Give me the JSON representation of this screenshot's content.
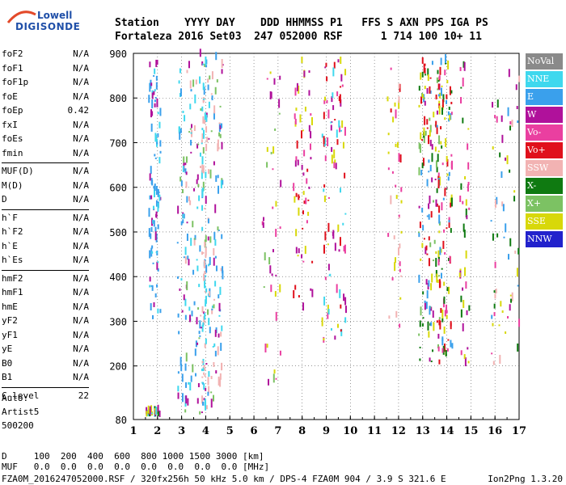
{
  "logo": {
    "line1": "Lowell",
    "line2": "DIGISONDE"
  },
  "header": {
    "line1": "Station    YYYY DAY    DDD HHMMSS P1   FFS S AXN PPS IGA PS",
    "line2": "Fortaleza 2016 Set03  247 052000 RSF      1 714 100 10+ 11"
  },
  "params": {
    "group1": [
      {
        "name": "foF2",
        "value": "N/A"
      },
      {
        "name": "foF1",
        "value": "N/A"
      },
      {
        "name": "foF1p",
        "value": "N/A"
      },
      {
        "name": "foE",
        "value": "N/A"
      },
      {
        "name": "foEp",
        "value": "0.42"
      },
      {
        "name": "fxI",
        "value": "N/A"
      },
      {
        "name": "foEs",
        "value": "N/A"
      },
      {
        "name": "fmin",
        "value": "N/A"
      }
    ],
    "group2": [
      {
        "name": "MUF(D)",
        "value": "N/A"
      },
      {
        "name": "M(D)",
        "value": "N/A"
      },
      {
        "name": "D",
        "value": "N/A"
      }
    ],
    "group3": [
      {
        "name": "h`F",
        "value": "N/A"
      },
      {
        "name": "h`F2",
        "value": "N/A"
      },
      {
        "name": "h`E",
        "value": "N/A"
      },
      {
        "name": "h`Es",
        "value": "N/A"
      }
    ],
    "group4": [
      {
        "name": "hmF2",
        "value": "N/A"
      },
      {
        "name": "hmF1",
        "value": "N/A"
      },
      {
        "name": "hmE",
        "value": "N/A"
      },
      {
        "name": "yF2",
        "value": "N/A"
      },
      {
        "name": "yF1",
        "value": "N/A"
      },
      {
        "name": "yE",
        "value": "N/A"
      },
      {
        "name": "B0",
        "value": "N/A"
      },
      {
        "name": "B1",
        "value": "N/A"
      }
    ],
    "group5": [
      {
        "name": "C-level",
        "value": "22"
      }
    ]
  },
  "auto": {
    "line1": "Auto:",
    "line2": "Artist5",
    "line3": "500200"
  },
  "legend": [
    {
      "label": "NoVal",
      "color": "#8a8a8a"
    },
    {
      "label": "NNE",
      "color": "#3fd8ee"
    },
    {
      "label": "E",
      "color": "#3aa0ec"
    },
    {
      "label": "W",
      "color": "#b0119b"
    },
    {
      "label": "Vo-",
      "color": "#ea3fa0"
    },
    {
      "label": "Vo+",
      "color": "#e0101c"
    },
    {
      "label": "SSW",
      "color": "#f2b3b3"
    },
    {
      "label": "X-",
      "color": "#0f7a11"
    },
    {
      "label": "X+",
      "color": "#7cc263"
    },
    {
      "label": "SSE",
      "color": "#d8d80a"
    },
    {
      "label": "NNW",
      "color": "#2222cc"
    }
  ],
  "chart_data": {
    "type": "scatter",
    "title": "",
    "xlabel": "",
    "ylabel": "",
    "xlim": [
      1,
      17
    ],
    "ylim": [
      80,
      900
    ],
    "x_ticks": [
      "1",
      "2",
      "3",
      "4",
      "5",
      "6",
      "7",
      "8",
      "9",
      "10",
      "11",
      "12",
      "13",
      "14",
      "15",
      "16",
      "17"
    ],
    "y_ticks": [
      "80",
      "200",
      "300",
      "400",
      "500",
      "600",
      "700",
      "800",
      "900"
    ],
    "grid": true,
    "description_of_marks": "colored ionogram echo traces by polarization/direction"
  },
  "footer": {
    "d_line": "D     100  200  400  600  800 1000 1500 3000 [km]",
    "muf_line": "MUF   0.0  0.0  0.0  0.0  0.0  0.0  0.0  0.0 [MHz]",
    "file_line": "FZA0M_2016247052000.RSF / 320fx256h 50 kHz 5.0 km / DPS-4 FZA0M 904 / 3.9 S 321.6 E",
    "version": "Ion2Png 1.3.20"
  }
}
